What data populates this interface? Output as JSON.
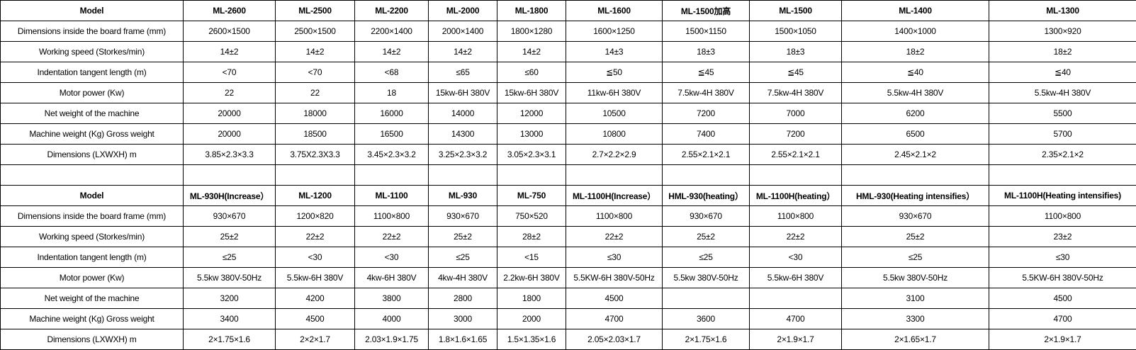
{
  "row_labels": [
    "Model",
    "Dimensions inside the board frame (mm)",
    "Working speed (Storkes/min)",
    "Indentation tangent length (m)",
    "Motor power (Kw)",
    "Net weight of the machine",
    "Machine weight (Kg) Gross weight",
    "Dimensions (LXWXH) m"
  ],
  "table1": {
    "models": [
      "ML-2600",
      "ML-2500",
      "ML-2200",
      "ML-2000",
      "ML-1800",
      "ML-1600",
      "ML-1500加高",
      "ML-1500",
      "ML-1400",
      "ML-1300"
    ],
    "rows": [
      [
        "2600×1500",
        "2500×1500",
        "2200×1400",
        "2000×1400",
        "1800×1280",
        "1600×1250",
        "1500×1150",
        "1500×1050",
        "1400×1000",
        "1300×920"
      ],
      [
        "14±2",
        "14±2",
        "14±2",
        "14±2",
        "14±2",
        "14±3",
        "18±3",
        "18±3",
        "18±2",
        "18±2"
      ],
      [
        "<70",
        "<70",
        "<68",
        "≤65",
        "≤60",
        "≦50",
        "≦45",
        "≦45",
        "≦40",
        "≦40"
      ],
      [
        "22",
        "22",
        "18",
        "15kw-6H 380V",
        "15kw-6H 380V",
        "11kw-6H 380V",
        "7.5kw-4H 380V",
        "7.5kw-4H 380V",
        "5.5kw-4H 380V",
        "5.5kw-4H 380V"
      ],
      [
        "20000",
        "18000",
        "16000",
        "14000",
        "12000",
        "10500",
        "7200",
        "7000",
        "6200",
        "5500"
      ],
      [
        "20000",
        "18500",
        "16500",
        "14300",
        "13000",
        "10800",
        "7400",
        "7200",
        "6500",
        "5700"
      ],
      [
        "3.85×2.3×3.3",
        "3.75X2.3X3.3",
        "3.45×2.3×3.2",
        "3.25×2.3×3.2",
        "3.05×2.3×3.1",
        "2.7×2.2×2.9",
        "2.55×2.1×2.1",
        "2.55×2.1×2.1",
        "2.45×2.1×2",
        "2.35×2.1×2"
      ]
    ]
  },
  "table2": {
    "models": [
      "ML-930H(Increase）",
      "ML-1200",
      "ML-1100",
      "ML-930",
      "ML-750",
      "ML-1100H(Increase）",
      "HML-930(heating）",
      "ML-1100H(heating）",
      "HML-930(Heating intensifies）",
      "ML-1100H(Heating intensifies)"
    ],
    "rows": [
      [
        "930×670",
        "1200×820",
        "1100×800",
        "930×670",
        "750×520",
        "1100×800",
        "930×670",
        "1100×800",
        "930×670",
        "1100×800"
      ],
      [
        "25±2",
        "22±2",
        "22±2",
        "25±2",
        "28±2",
        "22±2",
        "25±2",
        "22±2",
        "25±2",
        "23±2"
      ],
      [
        "≤25",
        "<30",
        "<30",
        "≤25",
        "<15",
        "≤30",
        "≤25",
        "<30",
        "≤25",
        "≤30"
      ],
      [
        "5.5kw 380V-50Hz",
        "5.5kw-6H 380V",
        "4kw-6H 380V",
        "4kw-4H 380V",
        "2.2kw-6H 380V",
        "5.5KW-6H 380V-50Hz",
        "5.5kw 380V-50Hz",
        "5.5kw-6H 380V",
        "5.5kw 380V-50Hz",
        "5.5KW-6H 380V-50Hz"
      ],
      [
        "3200",
        "4200",
        "3800",
        "2800",
        "1800",
        "4500",
        "",
        "",
        "3100",
        "4500"
      ],
      [
        "3400",
        "4500",
        "4000",
        "3000",
        "2000",
        "4700",
        "3600",
        "4700",
        "3300",
        "4700"
      ],
      [
        "2×1.75×1.6",
        "2×2×1.7",
        "2.03×1.9×1.75",
        "1.8×1.6×1.65",
        "1.5×1.35×1.6",
        "2.05×2.03×1.7",
        "2×1.75×1.6",
        "2×1.9×1.7",
        "2×1.65×1.7",
        "2×1.9×1.7"
      ]
    ]
  }
}
